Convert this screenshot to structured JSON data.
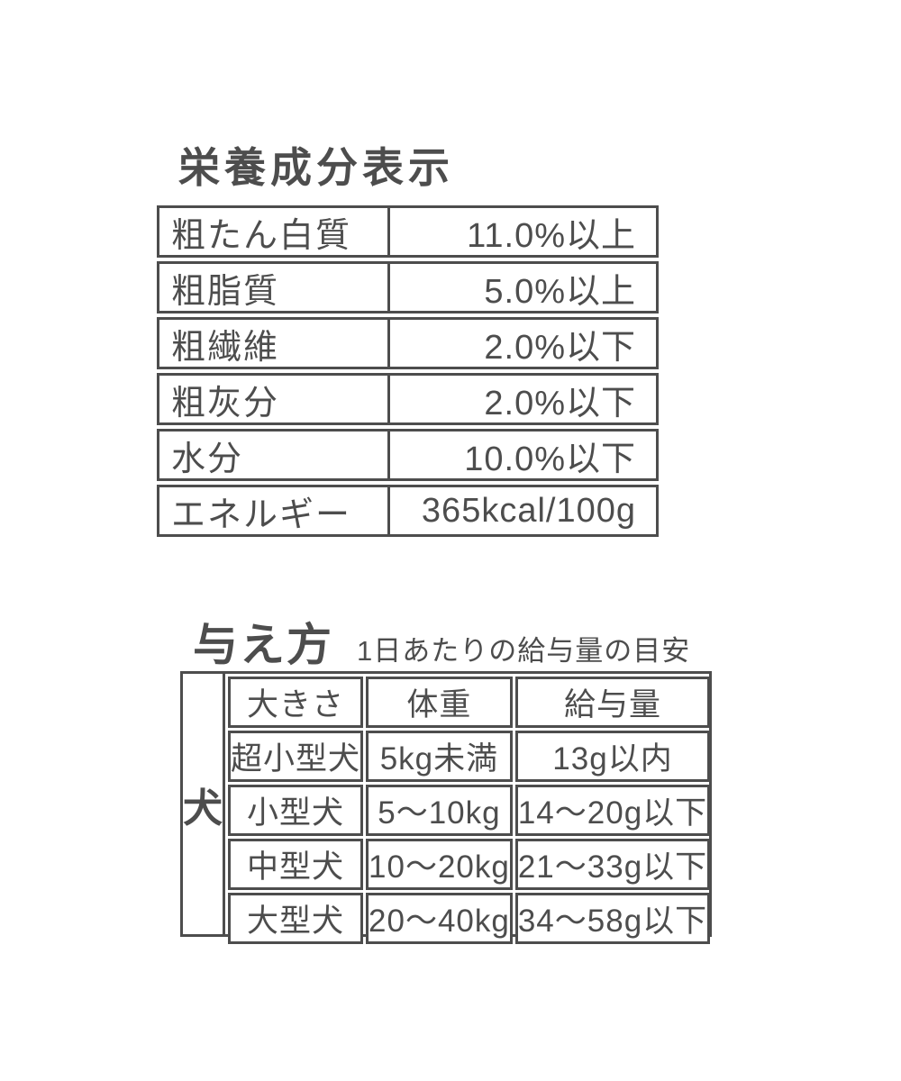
{
  "page": {
    "background_color": "#ffffff",
    "text_color": "#4d4d4d",
    "border_color": "#4d4d4d"
  },
  "nutrition": {
    "title": "栄養成分表示",
    "rows": [
      {
        "label": "粗たん白質",
        "value": "11.0%以上"
      },
      {
        "label": "粗脂質",
        "value": "5.0%以上"
      },
      {
        "label": "粗繊維",
        "value": "2.0%以下"
      },
      {
        "label": "粗灰分",
        "value": "2.0%以下"
      },
      {
        "label": "水分",
        "value": "10.0%以下"
      },
      {
        "label": "エネルギー",
        "value": "365kcal/100g"
      }
    ]
  },
  "feeding": {
    "title": "与え方",
    "subtitle": "1日あたりの給与量の目安",
    "species_label": "犬",
    "columns": [
      "大きさ",
      "体重",
      "給与量"
    ],
    "rows": [
      {
        "size": "超小型犬",
        "weight": "5kg未満",
        "amount": "13g以内"
      },
      {
        "size": "小型犬",
        "weight": "5〜10kg",
        "amount": "14〜20g以下"
      },
      {
        "size": "中型犬",
        "weight": "10〜20kg",
        "amount": "21〜33g以下"
      },
      {
        "size": "大型犬",
        "weight": "20〜40kg",
        "amount": "34〜58g以下"
      }
    ]
  }
}
